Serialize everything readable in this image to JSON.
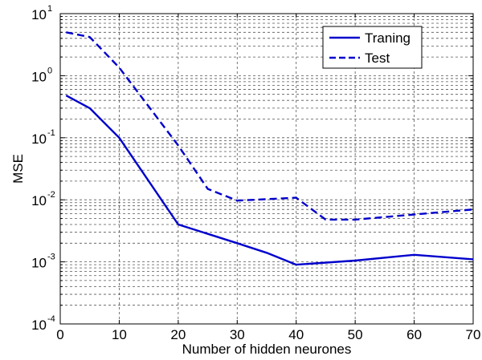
{
  "chart_data": {
    "type": "line",
    "title": "",
    "xlabel": "Number of hidden neurones",
    "ylabel": "MSE",
    "xlim": [
      0,
      70
    ],
    "ylim": [
      0.0001,
      10
    ],
    "yscale": "log",
    "xticks": [
      0,
      10,
      20,
      30,
      40,
      50,
      60,
      70
    ],
    "yticks": [
      {
        "value": 0.0001,
        "base": "10",
        "exp": "-4"
      },
      {
        "value": 0.001,
        "base": "10",
        "exp": "-3"
      },
      {
        "value": 0.01,
        "base": "10",
        "exp": "-2"
      },
      {
        "value": 0.1,
        "base": "10",
        "exp": "-1"
      },
      {
        "value": 1,
        "base": "10",
        "exp": "0"
      },
      {
        "value": 10,
        "base": "10",
        "exp": "1"
      }
    ],
    "grid": true,
    "legend": "top-right",
    "series": [
      {
        "name": "Traning",
        "style": "solid",
        "color": "#0000cc",
        "x": [
          1,
          5,
          10,
          20,
          30,
          35,
          40,
          50,
          60,
          70
        ],
        "y": [
          0.48,
          0.3,
          0.1,
          0.004,
          0.002,
          0.0014,
          0.0009,
          0.00105,
          0.0013,
          0.0011
        ]
      },
      {
        "name": "Test",
        "style": "dashed",
        "color": "#0000cc",
        "x": [
          1,
          5,
          10,
          20,
          25,
          30,
          40,
          45,
          50,
          60,
          70
        ],
        "y": [
          5.0,
          4.2,
          1.35,
          0.075,
          0.015,
          0.0097,
          0.0108,
          0.0048,
          0.0048,
          0.0058,
          0.007
        ]
      }
    ]
  }
}
